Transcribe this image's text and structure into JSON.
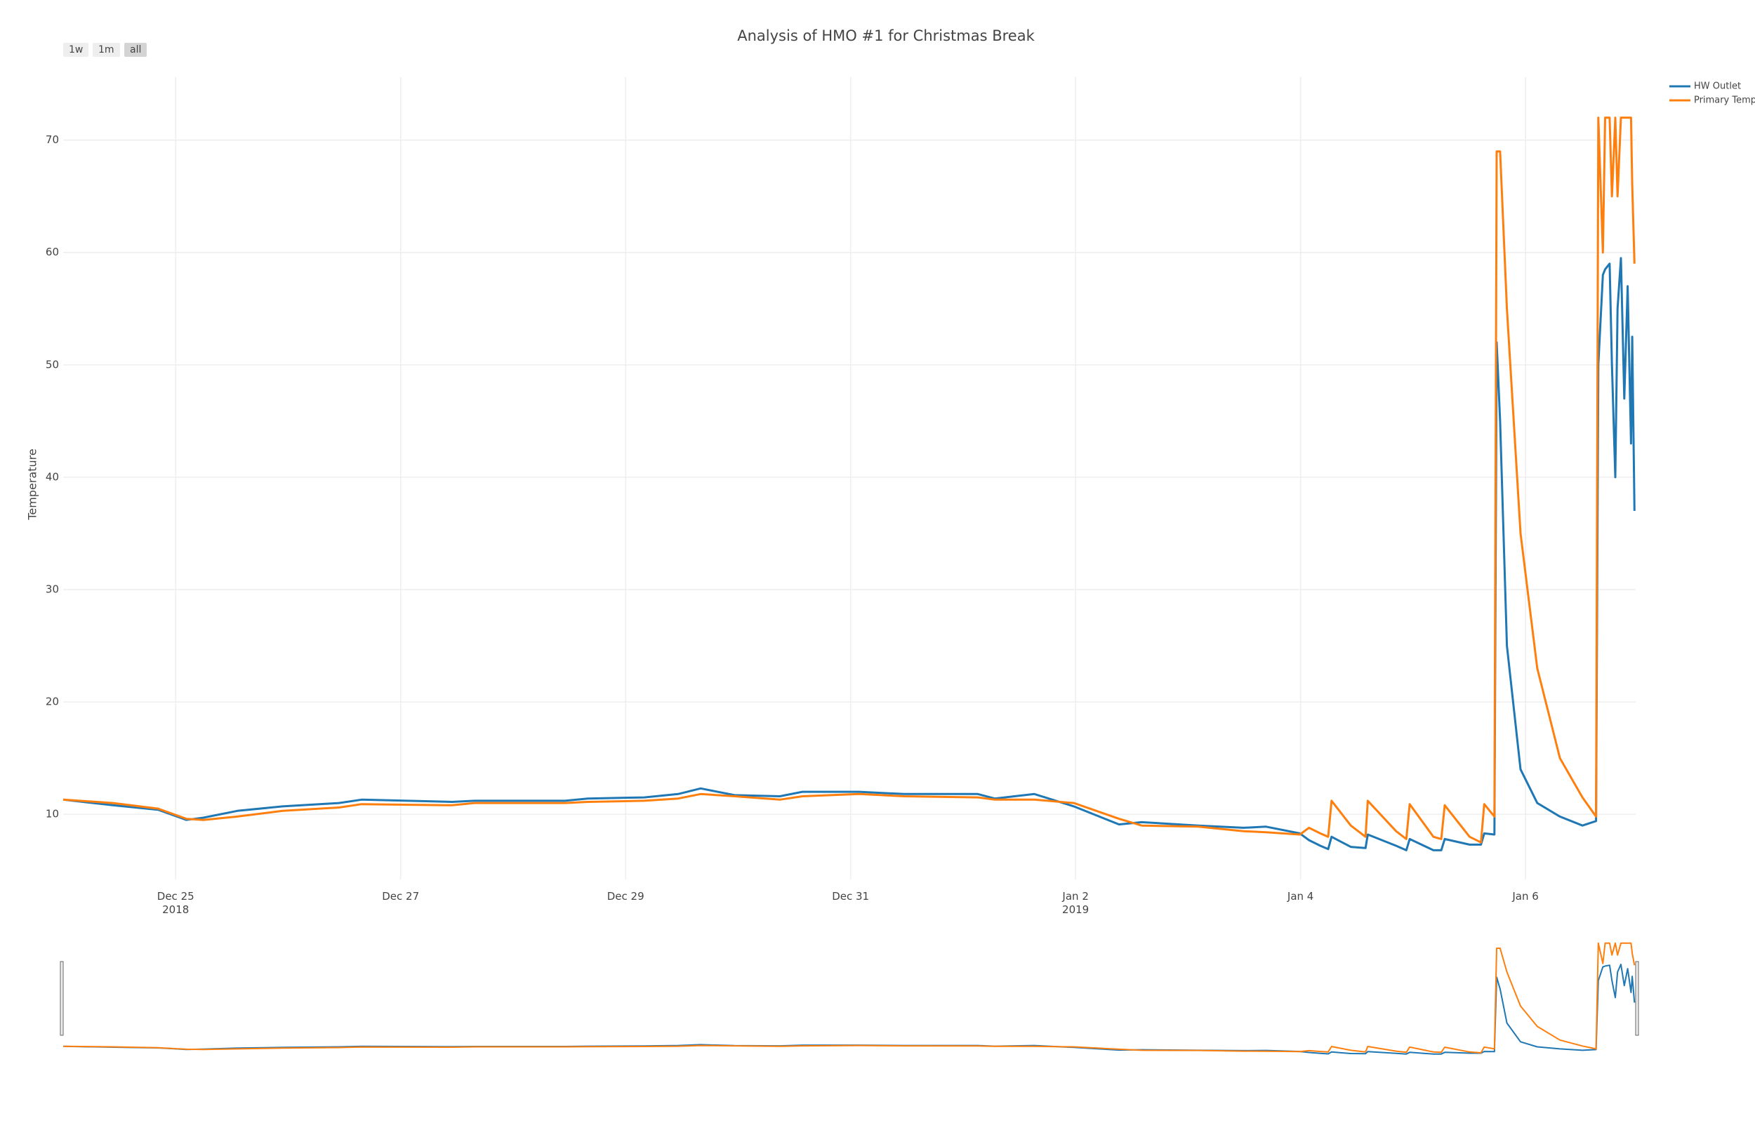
{
  "range_buttons": [
    "1w",
    "1m",
    "all"
  ],
  "chart_data": {
    "type": "line",
    "title": "Analysis of HMO #1 for Christmas Break",
    "y_label": "Temperature",
    "grid": true,
    "legend": "top-right",
    "range_slider": true,
    "xlim": [
      "2018-12-24 00:00",
      "2019-01-06 23:30"
    ],
    "ylim": [
      4.2,
      75.6
    ],
    "yticks": [
      10,
      20,
      30,
      40,
      50,
      60,
      70
    ],
    "xticks": [
      {
        "value": "2018-12-25 00:00",
        "label": "Dec 25\n2018"
      },
      {
        "value": "2018-12-27 00:00",
        "label": "Dec 27"
      },
      {
        "value": "2018-12-29 00:00",
        "label": "Dec 29"
      },
      {
        "value": "2018-12-31 00:00",
        "label": "Dec 31"
      },
      {
        "value": "2019-01-02 00:00",
        "label": "Jan 2\n2019"
      },
      {
        "value": "2019-01-04 00:00",
        "label": "Jan 4"
      },
      {
        "value": "2019-01-06 00:00",
        "label": "Jan 6"
      }
    ],
    "x": [
      "2018-12-24 00:00",
      "2018-12-24 10:36",
      "2018-12-24 20:16",
      "2018-12-25 02:18",
      "2018-12-25 05:55",
      "2018-12-25 13:09",
      "2018-12-25 22:48",
      "2018-12-26 10:51",
      "2018-12-26 15:40",
      "2018-12-27 10:58",
      "2018-12-27 15:47",
      "2018-12-28 11:06",
      "2018-12-28 15:55",
      "2018-12-29 03:58",
      "2018-12-29 11:12",
      "2018-12-29 16:01",
      "2018-12-29 23:15",
      "2018-12-30 08:54",
      "2018-12-30 13:44",
      "2018-12-31 01:48",
      "2018-12-31 11:27",
      "2019-01-01 03:08",
      "2019-01-01 06:45",
      "2019-01-01 15:12",
      "2019-01-01 23:38",
      "2019-01-02 09:17",
      "2019-01-02 14:07",
      "2019-01-03 02:10",
      "2019-01-03 11:49",
      "2019-01-03 16:38",
      "2019-01-03 23:52",
      "2019-01-04 01:48",
      "2019-01-04 04:13",
      "2019-01-04 05:54",
      "2019-01-04 06:37",
      "2019-01-04 10:43",
      "2019-01-04 13:52",
      "2019-01-04 14:21",
      "2019-01-04 20:23",
      "2019-01-04 22:34",
      "2019-01-04 23:17",
      "2019-01-05 04:21",
      "2019-01-05 06:02",
      "2019-01-05 06:46",
      "2019-01-05 12:04",
      "2019-01-05 14:29",
      "2019-01-05 15:12",
      "2019-01-05 17:22",
      "2019-01-05 17:51",
      "2019-01-05 18:35",
      "2019-01-05 20:02",
      "2019-01-05 22:56",
      "2019-01-06 02:30",
      "2019-01-06 07:20",
      "2019-01-06 12:09",
      "2019-01-06 15:03",
      "2019-01-06 15:32",
      "2019-01-06 16:30",
      "2019-01-06 16:59",
      "2019-01-06 17:57",
      "2019-01-06 18:26",
      "2019-01-06 19:09",
      "2019-01-06 19:38",
      "2019-01-06 20:21",
      "2019-01-06 21:04",
      "2019-01-06 21:48",
      "2019-01-06 22:31",
      "2019-01-06 22:46",
      "2019-01-06 23:15"
    ],
    "series": [
      {
        "name": "HW Outlet",
        "color": "#1f77b4",
        "values": [
          11.3,
          10.8,
          10.4,
          9.5,
          9.7,
          10.3,
          10.7,
          11.0,
          11.3,
          11.1,
          11.2,
          11.2,
          11.4,
          11.5,
          11.8,
          12.3,
          11.7,
          11.6,
          12.0,
          12.0,
          11.8,
          11.8,
          11.4,
          11.8,
          10.7,
          9.1,
          9.3,
          9.0,
          8.8,
          8.9,
          8.3,
          7.7,
          7.2,
          6.9,
          8.0,
          7.1,
          7.0,
          8.2,
          7.2,
          6.8,
          7.8,
          6.8,
          6.8,
          7.8,
          7.3,
          7.3,
          8.3,
          8.2,
          52,
          45,
          25,
          14,
          11,
          9.8,
          9.0,
          9.4,
          50,
          58,
          58.5,
          59,
          50,
          40,
          55,
          59.5,
          47,
          57,
          43,
          52.5,
          37
        ]
      },
      {
        "name": "Primary Temp",
        "color": "#ff7f0e",
        "values": [
          11.3,
          11.0,
          10.5,
          9.6,
          9.5,
          9.8,
          10.3,
          10.6,
          10.9,
          10.8,
          11.0,
          11.0,
          11.1,
          11.2,
          11.4,
          11.8,
          11.6,
          11.3,
          11.6,
          11.8,
          11.6,
          11.5,
          11.3,
          11.3,
          11.0,
          9.6,
          9.0,
          8.9,
          8.5,
          8.4,
          8.2,
          8.8,
          8.3,
          8.0,
          11.2,
          9.0,
          8.0,
          11.2,
          8.5,
          7.8,
          10.9,
          8.0,
          7.8,
          10.8,
          8.0,
          7.5,
          10.9,
          9.8,
          69,
          69,
          55,
          35,
          23,
          15,
          11.5,
          9.8,
          72,
          60,
          72,
          72,
          65,
          72,
          65,
          72,
          72,
          72,
          72,
          66,
          59
        ]
      }
    ]
  }
}
